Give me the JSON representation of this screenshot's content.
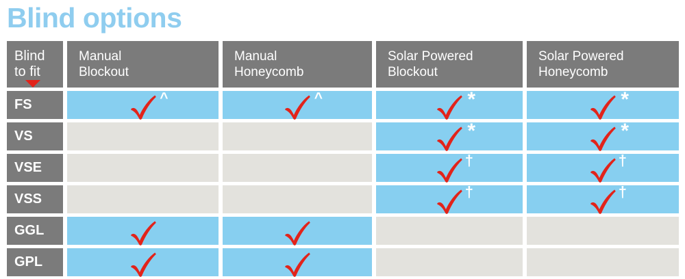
{
  "title": "Blind options",
  "colors": {
    "title_blue": "#8FCDEF",
    "cell_blue": "#87CFF0",
    "header_gray": "#7B7B7B",
    "empty_gray": "#E3E2DD",
    "check_red": "#E2231A"
  },
  "table": {
    "corner": {
      "line1": "Blind",
      "line2": "to fit"
    },
    "columns": [
      {
        "line1": "Manual",
        "line2": "Blockout"
      },
      {
        "line1": "Manual",
        "line2": "Honeycomb"
      },
      {
        "line1": "Solar Powered",
        "line2": "Blockout"
      },
      {
        "line1": "Solar Powered",
        "line2": "Honeycomb"
      }
    ],
    "rows": [
      {
        "label": "FS",
        "cells": [
          {
            "check": true,
            "note": "^"
          },
          {
            "check": true,
            "note": "^"
          },
          {
            "check": true,
            "note": "*"
          },
          {
            "check": true,
            "note": "*"
          }
        ]
      },
      {
        "label": "VS",
        "cells": [
          {
            "check": false,
            "note": ""
          },
          {
            "check": false,
            "note": ""
          },
          {
            "check": true,
            "note": "*"
          },
          {
            "check": true,
            "note": "*"
          }
        ]
      },
      {
        "label": "VSE",
        "cells": [
          {
            "check": false,
            "note": ""
          },
          {
            "check": false,
            "note": ""
          },
          {
            "check": true,
            "note": "†"
          },
          {
            "check": true,
            "note": "†"
          }
        ]
      },
      {
        "label": "VSS",
        "cells": [
          {
            "check": false,
            "note": ""
          },
          {
            "check": false,
            "note": ""
          },
          {
            "check": true,
            "note": "†"
          },
          {
            "check": true,
            "note": "†"
          }
        ]
      },
      {
        "label": "GGL",
        "cells": [
          {
            "check": true,
            "note": ""
          },
          {
            "check": true,
            "note": ""
          },
          {
            "check": false,
            "note": ""
          },
          {
            "check": false,
            "note": ""
          }
        ]
      },
      {
        "label": "GPL",
        "cells": [
          {
            "check": true,
            "note": ""
          },
          {
            "check": true,
            "note": ""
          },
          {
            "check": false,
            "note": ""
          },
          {
            "check": false,
            "note": ""
          }
        ]
      }
    ]
  }
}
